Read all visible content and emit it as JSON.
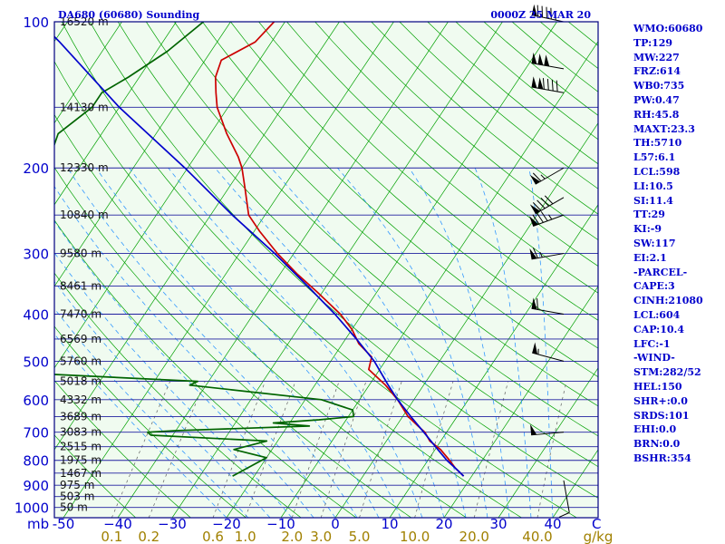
{
  "header": {
    "station_title": "DA680 (60680) Sounding",
    "valid_time": "0000Z 25 MAR 20"
  },
  "colors": {
    "frame": "#000080",
    "isobar": "#2020a0",
    "isotherm": "#00a000",
    "dry_adiabat": "#00a000",
    "moist_adiabat": "#3399ff",
    "mixing_ratio": "#606060",
    "temperature": "#cc0000",
    "dewpoint": "#006400",
    "parcel": "#0000cc",
    "plot_bg": "#f0fbf0",
    "text_blue": "#0000cc",
    "text_olive": "#a08000"
  },
  "chart_data": {
    "type": "line",
    "diagram": "skew-t log-p",
    "ylabel": "mb",
    "xunit": "C",
    "mixing_ratio_unit": "g/kg",
    "pressure_axis": {
      "type": "log",
      "range_hpa": [
        1050,
        100
      ]
    },
    "pressure_ticks": [
      100,
      200,
      300,
      400,
      500,
      600,
      700,
      800,
      900,
      1000
    ],
    "temperature_ticks": [
      -50,
      -40,
      -30,
      -20,
      -10,
      0,
      10,
      20,
      30,
      40
    ],
    "temperature_tick_labels": [
      "-50",
      "−40",
      "−30",
      "−20",
      "−10",
      "0",
      "10",
      "20",
      "30",
      "40"
    ],
    "mixing_ratio_ticks": [
      "0.1",
      "0.2",
      "0.6",
      "1.0",
      "2.0",
      "3.0",
      "5.0",
      "10.0",
      "20.0",
      "40.0"
    ],
    "height_labels": [
      {
        "p": 100,
        "label": "16520 m"
      },
      {
        "p": 150,
        "label": "14130 m"
      },
      {
        "p": 200,
        "label": "12330 m"
      },
      {
        "p": 250,
        "label": "10840 m"
      },
      {
        "p": 300,
        "label": "9580 m"
      },
      {
        "p": 350,
        "label": "8461 m"
      },
      {
        "p": 400,
        "label": "7470 m"
      },
      {
        "p": 450,
        "label": "6569 m"
      },
      {
        "p": 500,
        "label": "5760 m"
      },
      {
        "p": 550,
        "label": "5018 m"
      },
      {
        "p": 600,
        "label": "4332 m"
      },
      {
        "p": 650,
        "label": "3689 m"
      },
      {
        "p": 700,
        "label": "3083 m"
      },
      {
        "p": 750,
        "label": "2515 m"
      },
      {
        "p": 800,
        "label": "1975 m"
      },
      {
        "p": 850,
        "label": "1467 m"
      },
      {
        "p": 900,
        "label": "975 m"
      },
      {
        "p": 950,
        "label": "503 m"
      },
      {
        "p": 1000,
        "label": "50 m"
      }
    ],
    "series": [
      {
        "key": "temperature",
        "points": [
          [
            100,
            -72
          ],
          [
            110,
            -73
          ],
          [
            120,
            -77
          ],
          [
            130,
            -76
          ],
          [
            140,
            -74
          ],
          [
            150,
            -72
          ],
          [
            170,
            -67
          ],
          [
            190,
            -62
          ],
          [
            200,
            -60
          ],
          [
            220,
            -57
          ],
          [
            250,
            -53
          ],
          [
            270,
            -49
          ],
          [
            300,
            -43
          ],
          [
            330,
            -37
          ],
          [
            360,
            -31
          ],
          [
            400,
            -24
          ],
          [
            430,
            -20
          ],
          [
            460,
            -17
          ],
          [
            490,
            -13
          ],
          [
            520,
            -12
          ],
          [
            560,
            -7
          ],
          [
            600,
            -3
          ],
          [
            650,
            1
          ],
          [
            680,
            4
          ],
          [
            700,
            6
          ],
          [
            730,
            8
          ],
          [
            760,
            11
          ],
          [
            800,
            14
          ],
          [
            830,
            16
          ],
          [
            862,
            18.5
          ]
        ]
      },
      {
        "key": "dewpoint",
        "points": [
          [
            100,
            -85
          ],
          [
            115,
            -88
          ],
          [
            130,
            -92
          ],
          [
            140,
            -95
          ],
          [
            150,
            -95
          ],
          [
            170,
            -98
          ],
          [
            200,
            -96
          ],
          [
            215,
            -94
          ],
          [
            240,
            -108
          ],
          [
            270,
            -98
          ],
          [
            290,
            -100
          ],
          [
            295,
            -115
          ],
          [
            300,
            -101
          ],
          [
            310,
            -112
          ],
          [
            320,
            -103
          ],
          [
            350,
            -106
          ],
          [
            390,
            -112
          ],
          [
            440,
            -103
          ],
          [
            500,
            -118
          ],
          [
            520,
            -89
          ],
          [
            550,
            -42
          ],
          [
            560,
            -43
          ],
          [
            600,
            -17
          ],
          [
            630,
            -10
          ],
          [
            650,
            -9
          ],
          [
            660,
            -15
          ],
          [
            670,
            -23
          ],
          [
            680,
            -16
          ],
          [
            695,
            -40
          ],
          [
            700,
            -45
          ],
          [
            710,
            -44
          ],
          [
            730,
            -22
          ],
          [
            760,
            -27
          ],
          [
            790,
            -20
          ],
          [
            862,
            -24
          ]
        ]
      },
      {
        "key": "parcel",
        "points": [
          [
            862,
            18.5
          ],
          [
            830,
            16
          ],
          [
            800,
            13.5
          ],
          [
            760,
            10.5
          ],
          [
            700,
            5.8
          ],
          [
            650,
            1.5
          ],
          [
            600,
            -3
          ],
          [
            560,
            -6.5
          ],
          [
            500,
            -12
          ],
          [
            450,
            -18
          ],
          [
            400,
            -25
          ],
          [
            350,
            -33.5
          ],
          [
            300,
            -43.5
          ],
          [
            250,
            -56
          ],
          [
            200,
            -70.5
          ],
          [
            150,
            -90
          ],
          [
            110,
            -109
          ],
          [
            105,
            -112
          ]
        ]
      }
    ],
    "wind_barbs": [
      {
        "p": 100,
        "dir": 282,
        "kt": 95
      },
      {
        "p": 125,
        "dir": 280,
        "kt": 150
      },
      {
        "p": 140,
        "dir": 280,
        "kt": 140
      },
      {
        "p": 200,
        "dir": 240,
        "kt": 65
      },
      {
        "p": 230,
        "dir": 240,
        "kt": 90
      },
      {
        "p": 250,
        "dir": 250,
        "kt": 85
      },
      {
        "p": 300,
        "dir": 260,
        "kt": 65
      },
      {
        "p": 400,
        "dir": 280,
        "kt": 60
      },
      {
        "p": 500,
        "dir": 285,
        "kt": 55
      },
      {
        "p": 700,
        "dir": 265,
        "kt": 50
      },
      {
        "p": 880,
        "dir": 170,
        "kt": 10
      }
    ]
  },
  "indices": [
    "WMO:60680",
    "TP:129",
    "MW:227",
    "FRZ:614",
    "WB0:735",
    "PW:0.47",
    "RH:45.8",
    "MAXT:23.3",
    "TH:5710",
    "L57:6.1",
    "LCL:598",
    "LI:10.5",
    "SI:11.4",
    "TT:29",
    "KI:-9",
    "SW:117",
    "EI:2.1",
    "-PARCEL-",
    "CAPE:3",
    "CINH:21080",
    "LCL:604",
    "CAP:10.4",
    "LFC:-1",
    "-WIND-",
    "STM:282/52",
    "HEL:150",
    "SHR+:0.0",
    "SRDS:101",
    "EHI:0.0",
    "BRN:0.0",
    "BSHR:354"
  ]
}
